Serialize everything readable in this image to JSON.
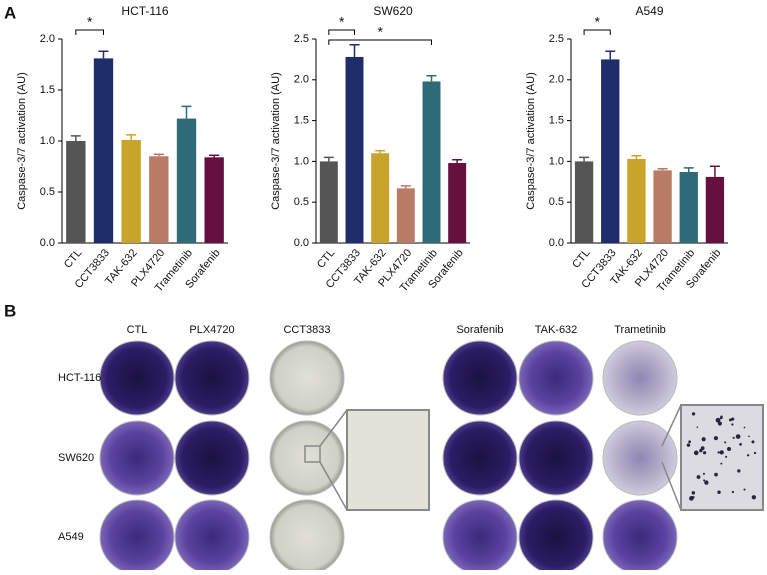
{
  "panels": {
    "a": "A",
    "b": "B"
  },
  "chart_data": [
    {
      "type": "bar",
      "title": "HCT-116",
      "y_label": "Caspase-3/7 activation (AU)",
      "categories": [
        "CTL",
        "CCT3833",
        "TAK-632",
        "PLX4720",
        "Trametinib",
        "Sorafenib"
      ],
      "values": [
        1.0,
        1.81,
        1.01,
        0.85,
        1.22,
        0.84
      ],
      "errors": [
        0.05,
        0.07,
        0.05,
        0.02,
        0.12,
        0.02
      ],
      "colors": [
        "#555555",
        "#1f2d6b",
        "#c8a42c",
        "#b87c66",
        "#2f6a77",
        "#66103f"
      ],
      "ylim": [
        0,
        2
      ],
      "yticks": [
        {
          "value": 0,
          "label": "0.0"
        },
        0.5,
        {
          "value": 1,
          "label": "1.0"
        },
        1.5,
        {
          "value": 2,
          "label": "2.0"
        }
      ],
      "significance": [
        {
          "label": "*",
          "pair": [
            0,
            1
          ]
        }
      ]
    },
    {
      "type": "bar",
      "title": "SW620",
      "y_label": "Caspase-3/7 activation (AU)",
      "categories": [
        "CTL",
        "CCT3833",
        "TAK-632",
        "PLX4720",
        "Trametinib",
        "Sorafenib"
      ],
      "values": [
        1.0,
        2.28,
        1.1,
        0.67,
        1.98,
        0.98
      ],
      "errors": [
        0.05,
        0.15,
        0.03,
        0.03,
        0.07,
        0.04
      ],
      "colors": [
        "#555555",
        "#1f2d6b",
        "#c8a42c",
        "#b87c66",
        "#2f6a77",
        "#66103f"
      ],
      "ylim": [
        0,
        2.5
      ],
      "yticks": [
        {
          "value": 0,
          "label": "0.0"
        },
        0.5,
        {
          "value": 1,
          "label": "1.0"
        },
        1.5,
        {
          "value": 2,
          "label": "2.0"
        },
        2.5
      ],
      "significance": [
        {
          "label": "*",
          "pair": [
            0,
            1
          ]
        },
        {
          "label": "*",
          "pair": [
            0,
            4
          ]
        }
      ]
    },
    {
      "type": "bar",
      "title": "A549",
      "y_label": "Caspase-3/7 activation (AU)",
      "categories": [
        "CTL",
        "CCT3833",
        "TAK-632",
        "PLX4720",
        "Trametinib",
        "Sorafenib"
      ],
      "values": [
        1.0,
        2.25,
        1.03,
        0.89,
        0.87,
        0.81
      ],
      "errors": [
        0.05,
        0.1,
        0.04,
        0.02,
        0.05,
        0.13
      ],
      "colors": [
        "#555555",
        "#1f2d6b",
        "#c8a42c",
        "#b87c66",
        "#2f6a77",
        "#66103f"
      ],
      "ylim": [
        0,
        2.5
      ],
      "yticks": [
        {
          "value": 0,
          "label": "0.0"
        },
        0.5,
        {
          "value": 1,
          "label": "1.0"
        },
        1.5,
        {
          "value": 2,
          "label": "2.0"
        },
        2.5
      ],
      "significance": [
        {
          "label": "*",
          "pair": [
            0,
            1
          ]
        }
      ]
    }
  ],
  "colony_assay": {
    "columns_left": [
      "CTL",
      "PLX4720",
      "CCT3833"
    ],
    "columns_right": [
      "Sorafenib",
      "TAK-632",
      "Trametinib"
    ],
    "rows": [
      "HCT-116",
      "SW620",
      "A549"
    ]
  }
}
